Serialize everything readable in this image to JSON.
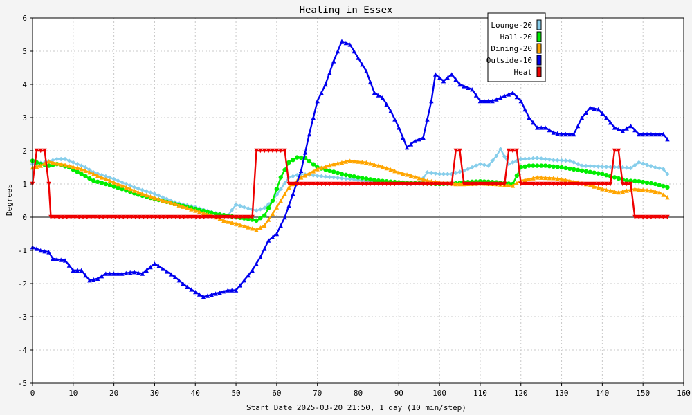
{
  "chart_data": {
    "type": "line",
    "title": "Heating in Essex",
    "xlabel": "Start Date 2025-03-20 21:50, 1 day (10 min/step)",
    "ylabel": "Degrees",
    "xlim": [
      0,
      160
    ],
    "ylim": [
      -5,
      6
    ],
    "xticks": [
      0,
      10,
      20,
      30,
      40,
      50,
      60,
      70,
      80,
      90,
      100,
      110,
      120,
      130,
      140,
      150,
      160
    ],
    "yticks": [
      -5,
      -4,
      -3,
      -2,
      -1,
      0,
      1,
      2,
      3,
      4,
      5,
      6
    ],
    "grid": true,
    "legend_position": "top-right",
    "series": [
      {
        "name": "Lounge-20",
        "color": "#87ceeb",
        "marker": "diamond",
        "points": [
          [
            0,
            1.6
          ],
          [
            3,
            1.65
          ],
          [
            6,
            1.75
          ],
          [
            8,
            1.75
          ],
          [
            10,
            1.65
          ],
          [
            13,
            1.5
          ],
          [
            15,
            1.35
          ],
          [
            20,
            1.15
          ],
          [
            25,
            0.9
          ],
          [
            30,
            0.7
          ],
          [
            35,
            0.45
          ],
          [
            40,
            0.3
          ],
          [
            45,
            0.12
          ],
          [
            48,
            0.05
          ],
          [
            50,
            0.38
          ],
          [
            52,
            0.3
          ],
          [
            55,
            0.2
          ],
          [
            57,
            0.28
          ],
          [
            59,
            0.5
          ],
          [
            61,
            0.85
          ],
          [
            63,
            1.2
          ],
          [
            66,
            1.3
          ],
          [
            72,
            1.22
          ],
          [
            78,
            1.15
          ],
          [
            85,
            1.05
          ],
          [
            90,
            1.0
          ],
          [
            95,
            1.0
          ],
          [
            97,
            1.35
          ],
          [
            100,
            1.3
          ],
          [
            103,
            1.3
          ],
          [
            106,
            1.4
          ],
          [
            110,
            1.6
          ],
          [
            112,
            1.55
          ],
          [
            114,
            1.85
          ],
          [
            115,
            2.05
          ],
          [
            117,
            1.6
          ],
          [
            120,
            1.75
          ],
          [
            124,
            1.78
          ],
          [
            128,
            1.72
          ],
          [
            132,
            1.7
          ],
          [
            135,
            1.55
          ],
          [
            140,
            1.52
          ],
          [
            145,
            1.5
          ],
          [
            147,
            1.48
          ],
          [
            149,
            1.65
          ],
          [
            153,
            1.5
          ],
          [
            155,
            1.45
          ],
          [
            156,
            1.3
          ]
        ]
      },
      {
        "name": "Hall-20",
        "color": "#00ee00",
        "marker": "circle",
        "points": [
          [
            0,
            1.7
          ],
          [
            2,
            1.6
          ],
          [
            4,
            1.55
          ],
          [
            6,
            1.6
          ],
          [
            9,
            1.5
          ],
          [
            12,
            1.3
          ],
          [
            15,
            1.1
          ],
          [
            18,
            1.0
          ],
          [
            22,
            0.85
          ],
          [
            26,
            0.68
          ],
          [
            30,
            0.55
          ],
          [
            35,
            0.4
          ],
          [
            40,
            0.25
          ],
          [
            45,
            0.1
          ],
          [
            50,
            0.0
          ],
          [
            53,
            -0.05
          ],
          [
            55,
            -0.1
          ],
          [
            57,
            0.05
          ],
          [
            59,
            0.5
          ],
          [
            61,
            1.2
          ],
          [
            63,
            1.65
          ],
          [
            65,
            1.8
          ],
          [
            67,
            1.78
          ],
          [
            70,
            1.5
          ],
          [
            73,
            1.4
          ],
          [
            76,
            1.3
          ],
          [
            80,
            1.2
          ],
          [
            85,
            1.1
          ],
          [
            90,
            1.05
          ],
          [
            95,
            1.02
          ],
          [
            100,
            1.0
          ],
          [
            104,
            1.02
          ],
          [
            106,
            1.05
          ],
          [
            110,
            1.08
          ],
          [
            114,
            1.05
          ],
          [
            118,
            1.0
          ],
          [
            120,
            1.5
          ],
          [
            122,
            1.55
          ],
          [
            126,
            1.55
          ],
          [
            130,
            1.5
          ],
          [
            135,
            1.4
          ],
          [
            140,
            1.3
          ],
          [
            143,
            1.2
          ],
          [
            146,
            1.1
          ],
          [
            149,
            1.08
          ],
          [
            153,
            1.0
          ],
          [
            156,
            0.9
          ]
        ]
      },
      {
        "name": "Dining-20",
        "color": "#ffa500",
        "marker": "triangle",
        "points": [
          [
            0,
            1.5
          ],
          [
            2,
            1.55
          ],
          [
            4,
            1.68
          ],
          [
            6,
            1.62
          ],
          [
            9,
            1.55
          ],
          [
            12,
            1.45
          ],
          [
            15,
            1.3
          ],
          [
            18,
            1.15
          ],
          [
            22,
            0.95
          ],
          [
            26,
            0.75
          ],
          [
            30,
            0.58
          ],
          [
            35,
            0.4
          ],
          [
            40,
            0.2
          ],
          [
            44,
            0.05
          ],
          [
            47,
            -0.1
          ],
          [
            50,
            -0.2
          ],
          [
            53,
            -0.3
          ],
          [
            55,
            -0.38
          ],
          [
            57,
            -0.25
          ],
          [
            59,
            0.1
          ],
          [
            61,
            0.5
          ],
          [
            63,
            0.9
          ],
          [
            66,
            1.2
          ],
          [
            70,
            1.45
          ],
          [
            74,
            1.6
          ],
          [
            78,
            1.7
          ],
          [
            82,
            1.65
          ],
          [
            86,
            1.52
          ],
          [
            90,
            1.35
          ],
          [
            94,
            1.22
          ],
          [
            97,
            1.1
          ],
          [
            100,
            1.05
          ],
          [
            104,
            1.0
          ],
          [
            106,
            1.0
          ],
          [
            110,
            1.02
          ],
          [
            114,
            1.0
          ],
          [
            118,
            0.95
          ],
          [
            120,
            1.1
          ],
          [
            124,
            1.2
          ],
          [
            128,
            1.18
          ],
          [
            132,
            1.1
          ],
          [
            136,
            1.0
          ],
          [
            140,
            0.85
          ],
          [
            144,
            0.75
          ],
          [
            148,
            0.85
          ],
          [
            152,
            0.8
          ],
          [
            154,
            0.75
          ],
          [
            156,
            0.6
          ]
        ]
      },
      {
        "name": "Outside-10",
        "color": "#0000ee",
        "marker": "triangle",
        "points": [
          [
            0,
            -0.9
          ],
          [
            2,
            -1.0
          ],
          [
            4,
            -1.05
          ],
          [
            5,
            -1.25
          ],
          [
            8,
            -1.3
          ],
          [
            10,
            -1.6
          ],
          [
            12,
            -1.6
          ],
          [
            14,
            -1.9
          ],
          [
            16,
            -1.85
          ],
          [
            18,
            -1.7
          ],
          [
            22,
            -1.7
          ],
          [
            25,
            -1.65
          ],
          [
            27,
            -1.7
          ],
          [
            30,
            -1.4
          ],
          [
            32,
            -1.55
          ],
          [
            35,
            -1.8
          ],
          [
            38,
            -2.1
          ],
          [
            42,
            -2.4
          ],
          [
            45,
            -2.3
          ],
          [
            48,
            -2.2
          ],
          [
            50,
            -2.2
          ],
          [
            52,
            -1.9
          ],
          [
            54,
            -1.6
          ],
          [
            56,
            -1.2
          ],
          [
            58,
            -0.7
          ],
          [
            60,
            -0.5
          ],
          [
            62,
            0.0
          ],
          [
            64,
            0.7
          ],
          [
            66,
            1.4
          ],
          [
            68,
            2.5
          ],
          [
            70,
            3.5
          ],
          [
            72,
            4.0
          ],
          [
            74,
            4.7
          ],
          [
            76,
            5.3
          ],
          [
            78,
            5.2
          ],
          [
            80,
            4.8
          ],
          [
            82,
            4.4
          ],
          [
            84,
            3.75
          ],
          [
            86,
            3.6
          ],
          [
            88,
            3.2
          ],
          [
            90,
            2.7
          ],
          [
            92,
            2.1
          ],
          [
            94,
            2.3
          ],
          [
            96,
            2.4
          ],
          [
            98,
            3.5
          ],
          [
            99,
            4.3
          ],
          [
            101,
            4.1
          ],
          [
            103,
            4.3
          ],
          [
            105,
            4.0
          ],
          [
            108,
            3.85
          ],
          [
            110,
            3.5
          ],
          [
            113,
            3.5
          ],
          [
            115,
            3.6
          ],
          [
            118,
            3.75
          ],
          [
            120,
            3.5
          ],
          [
            122,
            3.0
          ],
          [
            124,
            2.7
          ],
          [
            126,
            2.7
          ],
          [
            128,
            2.55
          ],
          [
            130,
            2.5
          ],
          [
            133,
            2.5
          ],
          [
            135,
            3.0
          ],
          [
            137,
            3.3
          ],
          [
            139,
            3.25
          ],
          [
            141,
            3.0
          ],
          [
            143,
            2.7
          ],
          [
            145,
            2.6
          ],
          [
            147,
            2.75
          ],
          [
            149,
            2.5
          ],
          [
            152,
            2.5
          ],
          [
            155,
            2.5
          ],
          [
            156,
            2.35
          ]
        ]
      },
      {
        "name": "Heat",
        "color": "#ee0000",
        "marker": "triangle-down",
        "points": [
          [
            0,
            1.0
          ],
          [
            1,
            2.0
          ],
          [
            3,
            2.0
          ],
          [
            4,
            1.0
          ],
          [
            4.5,
            0.0
          ],
          [
            54,
            0.0
          ],
          [
            55,
            2.0
          ],
          [
            62,
            2.0
          ],
          [
            63,
            1.0
          ],
          [
            103,
            1.0
          ],
          [
            104,
            2.0
          ],
          [
            105,
            2.0
          ],
          [
            106,
            1.0
          ],
          [
            116,
            1.0
          ],
          [
            117,
            2.0
          ],
          [
            119,
            2.0
          ],
          [
            120,
            1.0
          ],
          [
            142,
            1.0
          ],
          [
            143,
            2.0
          ],
          [
            144,
            2.0
          ],
          [
            145,
            1.0
          ],
          [
            147,
            1.0
          ],
          [
            148,
            0.0
          ],
          [
            156,
            0.0
          ]
        ]
      }
    ]
  }
}
